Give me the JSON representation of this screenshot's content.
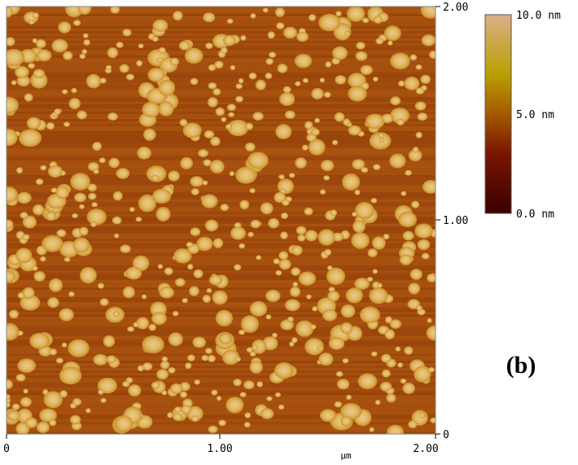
{
  "x_axis": {
    "ticks": [
      "0",
      "1.00",
      "2.00"
    ],
    "unit": "μm"
  },
  "y_axis": {
    "ticks": [
      "0",
      "1.00",
      "2.00"
    ]
  },
  "colorbar": {
    "labels": [
      "0.0 nm",
      "5.0 nm",
      "10.0 nm"
    ]
  },
  "panel_label": "(b)"
}
